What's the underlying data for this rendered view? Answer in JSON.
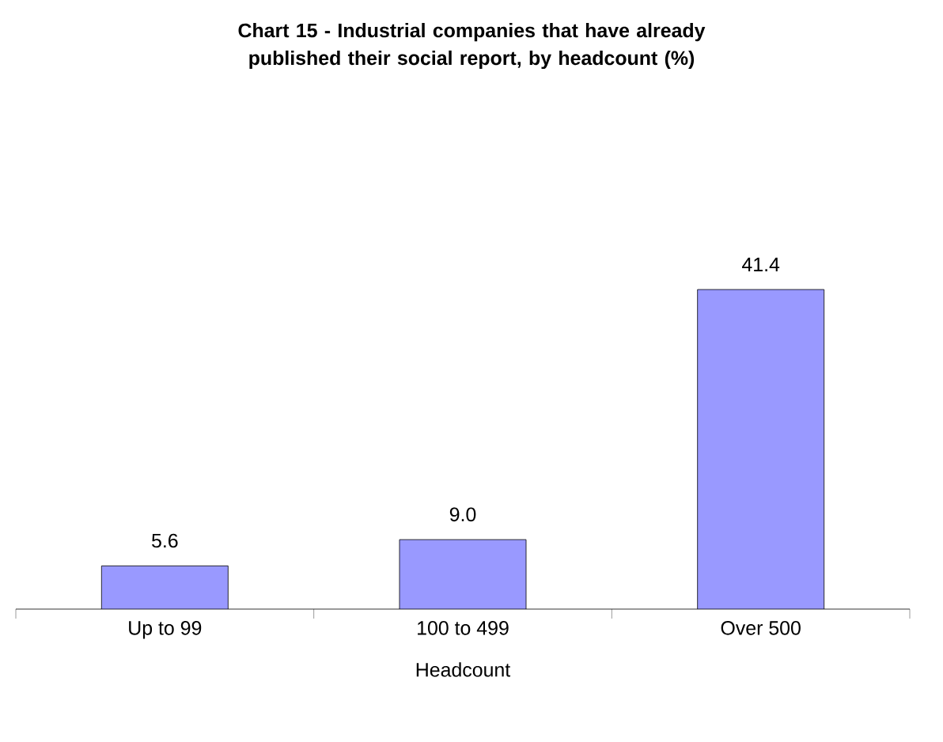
{
  "chart_data": {
    "type": "bar",
    "title": "Chart 15 - Industrial companies that have already published their social report, by headcount (%)",
    "xlabel": "Headcount",
    "categories": [
      "Up to 99",
      "100 to 499",
      "Over 500"
    ],
    "values": [
      5.6,
      9.0,
      41.4
    ],
    "color": "#9999ff",
    "value_labels": [
      "5.6",
      "9.0",
      "41.4"
    ]
  }
}
